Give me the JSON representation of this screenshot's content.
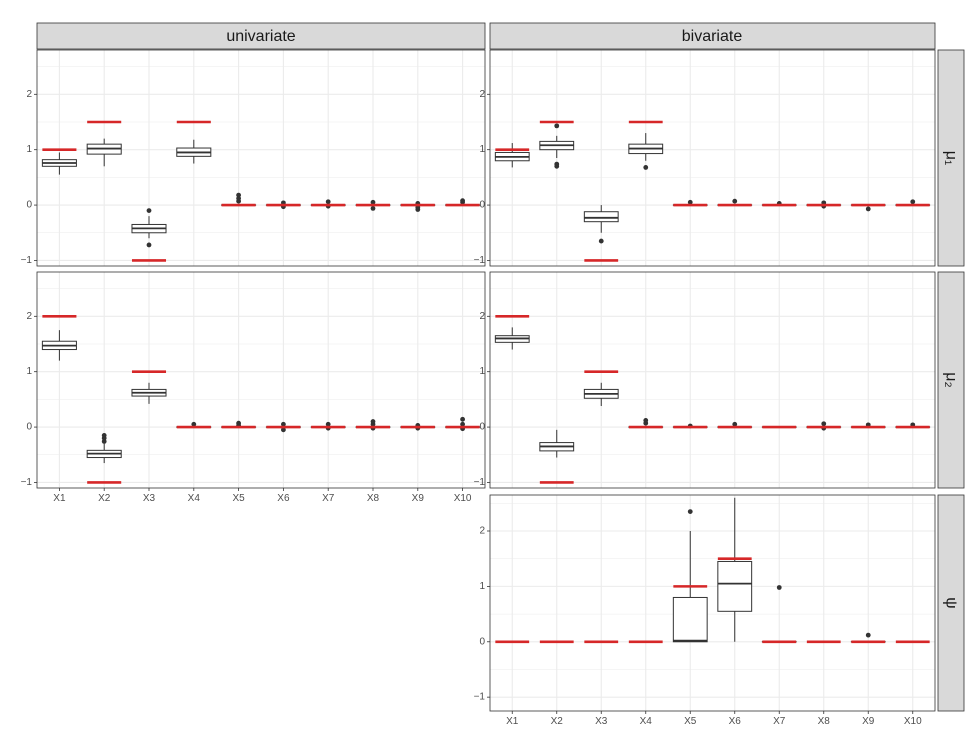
{
  "colors": {
    "truth": "#d62728",
    "box_stroke": "#333333",
    "strip_bg": "#d9d9d9",
    "grid": "#ebebeb",
    "panel_border": "#333333"
  },
  "chart_data": {
    "type": "boxplot",
    "layout": "facet grid: columns = method, rows = parameter",
    "columns": [
      "univariate",
      "bivariate"
    ],
    "rows": [
      "μ₁",
      "μ₂",
      "ψ"
    ],
    "categories": [
      "X1",
      "X2",
      "X3",
      "X4",
      "X5",
      "X6",
      "X7",
      "X8",
      "X9",
      "X10"
    ],
    "panels": [
      {
        "id": "mu1-univariate",
        "row": "μ₁",
        "column": "univariate",
        "ylim": [
          -1.1,
          2.8
        ],
        "yticks": [
          -1,
          0,
          1,
          2
        ],
        "truth": [
          1,
          1.5,
          -1,
          1.5,
          0,
          0,
          0,
          0,
          0,
          0
        ],
        "boxes": [
          {
            "min": 0.55,
            "q1": 0.7,
            "median": 0.76,
            "q3": 0.82,
            "max": 0.95,
            "outliers": []
          },
          {
            "min": 0.7,
            "q1": 0.92,
            "median": 1.02,
            "q3": 1.1,
            "max": 1.2,
            "outliers": []
          },
          {
            "min": -0.6,
            "q1": -0.5,
            "median": -0.42,
            "q3": -0.35,
            "max": -0.2,
            "outliers": [
              -0.72,
              -0.1
            ]
          },
          {
            "min": 0.75,
            "q1": 0.88,
            "median": 0.95,
            "q3": 1.03,
            "max": 1.18,
            "outliers": []
          },
          {
            "min": 0,
            "q1": 0,
            "median": 0,
            "q3": 0,
            "max": 0,
            "outliers": [
              0.07,
              0.12,
              0.18
            ]
          },
          {
            "min": 0,
            "q1": 0,
            "median": 0,
            "q3": 0,
            "max": 0,
            "outliers": [
              -0.03,
              0.04
            ]
          },
          {
            "min": 0,
            "q1": 0,
            "median": 0,
            "q3": 0,
            "max": 0,
            "outliers": [
              -0.02,
              0.06
            ]
          },
          {
            "min": 0,
            "q1": 0,
            "median": 0,
            "q3": 0,
            "max": 0,
            "outliers": [
              -0.06,
              0.05
            ]
          },
          {
            "min": 0,
            "q1": 0,
            "median": 0,
            "q3": 0,
            "max": 0,
            "outliers": [
              -0.08,
              -0.04,
              0.03
            ]
          },
          {
            "min": 0,
            "q1": 0,
            "median": 0,
            "q3": 0,
            "max": 0,
            "outliers": [
              0.05,
              0.08
            ]
          }
        ]
      },
      {
        "id": "mu1-bivariate",
        "row": "μ₁",
        "column": "bivariate",
        "ylim": [
          -1.1,
          2.8
        ],
        "yticks": [
          -1,
          0,
          1,
          2
        ],
        "truth": [
          1,
          1.5,
          -1,
          1.5,
          0,
          0,
          0,
          0,
          0,
          0
        ],
        "boxes": [
          {
            "min": 0.68,
            "q1": 0.8,
            "median": 0.87,
            "q3": 0.95,
            "max": 1.12,
            "outliers": []
          },
          {
            "min": 0.85,
            "q1": 1.0,
            "median": 1.08,
            "q3": 1.15,
            "max": 1.25,
            "outliers": [
              0.7,
              0.74,
              1.43
            ]
          },
          {
            "min": -0.5,
            "q1": -0.3,
            "median": -0.23,
            "q3": -0.12,
            "max": 0.0,
            "outliers": [
              -0.65
            ]
          },
          {
            "min": 0.8,
            "q1": 0.93,
            "median": 1.02,
            "q3": 1.1,
            "max": 1.3,
            "outliers": [
              0.68
            ]
          },
          {
            "min": 0,
            "q1": 0,
            "median": 0,
            "q3": 0,
            "max": 0,
            "outliers": [
              0.05
            ]
          },
          {
            "min": 0,
            "q1": 0,
            "median": 0,
            "q3": 0,
            "max": 0,
            "outliers": [
              0.07
            ]
          },
          {
            "min": 0,
            "q1": 0,
            "median": 0,
            "q3": 0,
            "max": 0,
            "outliers": [
              0.03
            ]
          },
          {
            "min": 0,
            "q1": 0,
            "median": 0,
            "q3": 0,
            "max": 0,
            "outliers": [
              -0.02,
              0.04
            ]
          },
          {
            "min": 0,
            "q1": 0,
            "median": 0,
            "q3": 0,
            "max": 0,
            "outliers": [
              -0.07
            ]
          },
          {
            "min": 0,
            "q1": 0,
            "median": 0,
            "q3": 0,
            "max": 0,
            "outliers": [
              0.06
            ]
          }
        ]
      },
      {
        "id": "mu2-univariate",
        "row": "μ₂",
        "column": "univariate",
        "ylim": [
          -1.1,
          2.8
        ],
        "yticks": [
          -1,
          0,
          1,
          2
        ],
        "truth": [
          2,
          -1,
          1,
          0,
          0,
          0,
          0,
          0,
          0,
          0
        ],
        "boxes": [
          {
            "min": 1.2,
            "q1": 1.4,
            "median": 1.47,
            "q3": 1.55,
            "max": 1.75,
            "outliers": []
          },
          {
            "min": -0.65,
            "q1": -0.55,
            "median": -0.48,
            "q3": -0.42,
            "max": -0.3,
            "outliers": [
              -0.26,
              -0.2,
              -0.15
            ]
          },
          {
            "min": 0.42,
            "q1": 0.56,
            "median": 0.62,
            "q3": 0.68,
            "max": 0.8,
            "outliers": []
          },
          {
            "min": 0,
            "q1": 0,
            "median": 0,
            "q3": 0,
            "max": 0,
            "outliers": [
              0.05
            ]
          },
          {
            "min": 0,
            "q1": 0,
            "median": 0,
            "q3": 0,
            "max": 0,
            "outliers": [
              0.03,
              0.07
            ]
          },
          {
            "min": 0,
            "q1": 0,
            "median": 0,
            "q3": 0,
            "max": 0,
            "outliers": [
              -0.05,
              0.05
            ]
          },
          {
            "min": 0,
            "q1": 0,
            "median": 0,
            "q3": 0,
            "max": 0,
            "outliers": [
              -0.02,
              0.05
            ]
          },
          {
            "min": 0,
            "q1": 0,
            "median": 0,
            "q3": 0,
            "max": 0,
            "outliers": [
              -0.02,
              0.05,
              0.1
            ]
          },
          {
            "min": 0,
            "q1": 0,
            "median": 0,
            "q3": 0,
            "max": 0,
            "outliers": [
              -0.02,
              0.03
            ]
          },
          {
            "min": 0,
            "q1": 0,
            "median": 0,
            "q3": 0,
            "max": 0,
            "outliers": [
              -0.03,
              0.05,
              0.14
            ]
          }
        ]
      },
      {
        "id": "mu2-bivariate",
        "row": "μ₂",
        "column": "bivariate",
        "ylim": [
          -1.1,
          2.8
        ],
        "yticks": [
          -1,
          0,
          1,
          2
        ],
        "truth": [
          2,
          -1,
          1,
          0,
          0,
          0,
          0,
          0,
          0,
          0
        ],
        "boxes": [
          {
            "min": 1.4,
            "q1": 1.53,
            "median": 1.6,
            "q3": 1.65,
            "max": 1.8,
            "outliers": []
          },
          {
            "min": -0.55,
            "q1": -0.43,
            "median": -0.35,
            "q3": -0.28,
            "max": -0.05,
            "outliers": []
          },
          {
            "min": 0.38,
            "q1": 0.52,
            "median": 0.6,
            "q3": 0.68,
            "max": 0.8,
            "outliers": []
          },
          {
            "min": 0,
            "q1": 0,
            "median": 0,
            "q3": 0,
            "max": 0,
            "outliers": [
              0.07,
              0.12
            ]
          },
          {
            "min": 0,
            "q1": 0,
            "median": 0,
            "q3": 0,
            "max": 0,
            "outliers": [
              0.02
            ]
          },
          {
            "min": 0,
            "q1": 0,
            "median": 0,
            "q3": 0,
            "max": 0,
            "outliers": [
              0.05
            ]
          },
          {
            "min": 0,
            "q1": 0,
            "median": 0,
            "q3": 0,
            "max": 0,
            "outliers": []
          },
          {
            "min": 0,
            "q1": 0,
            "median": 0,
            "q3": 0,
            "max": 0,
            "outliers": [
              -0.02,
              0.06
            ]
          },
          {
            "min": 0,
            "q1": 0,
            "median": 0,
            "q3": 0,
            "max": 0,
            "outliers": [
              0.04
            ]
          },
          {
            "min": 0,
            "q1": 0,
            "median": 0,
            "q3": 0,
            "max": 0,
            "outliers": [
              0.04
            ]
          }
        ]
      },
      {
        "id": "psi-bivariate",
        "row": "ψ",
        "column": "bivariate",
        "ylim": [
          -1.25,
          2.65
        ],
        "yticks": [
          -1,
          0,
          1,
          2
        ],
        "truth": [
          0,
          0,
          0,
          0,
          1,
          1.5,
          0,
          0,
          0,
          0
        ],
        "boxes": [
          null,
          null,
          null,
          null,
          {
            "min": 0.0,
            "q1": 0.0,
            "median": 0.02,
            "q3": 0.8,
            "max": 2.0,
            "outliers": [
              2.35
            ]
          },
          {
            "min": 0.0,
            "q1": 0.55,
            "median": 1.05,
            "q3": 1.45,
            "max": 2.6,
            "outliers": []
          },
          {
            "min": 0,
            "q1": 0,
            "median": 0,
            "q3": 0,
            "max": 0,
            "outliers": [
              0.98
            ]
          },
          null,
          {
            "min": 0,
            "q1": 0,
            "median": 0,
            "q3": 0,
            "max": 0,
            "outliers": [
              0.12
            ]
          },
          null
        ]
      }
    ]
  }
}
